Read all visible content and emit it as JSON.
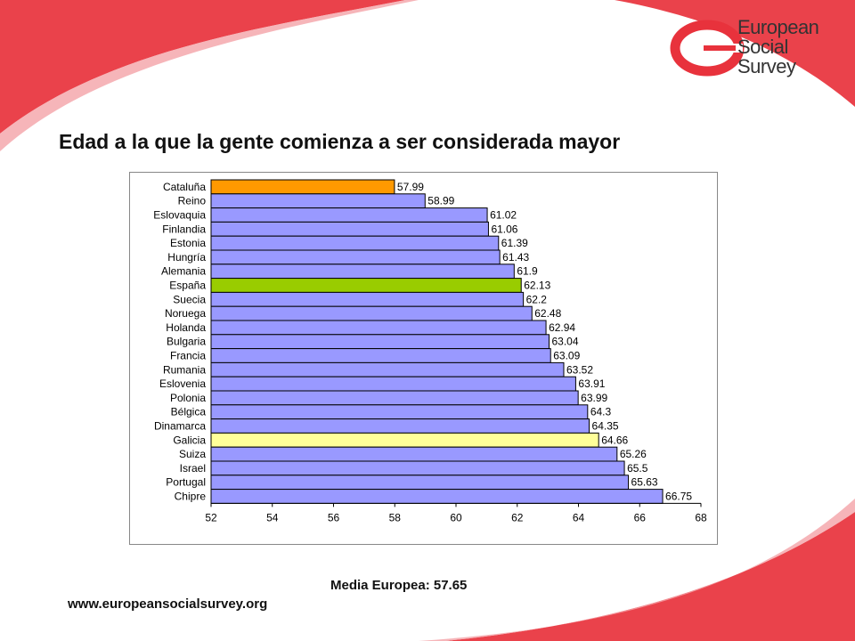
{
  "logo": {
    "line1": "European",
    "line2": "Social",
    "line3": "Survey"
  },
  "footer": {
    "average_label": "Media Europea: 57.65",
    "website": "www.europeansocialsurvey.org"
  },
  "colors": {
    "default_bar": "#9999ff",
    "cataluna_bar": "#ff9900",
    "espana_bar": "#99cc00",
    "galicia_bar": "#ffff99",
    "brand_red": "#e8323c"
  },
  "chart_data": {
    "type": "bar",
    "orientation": "horizontal",
    "title": "Edad a la que la gente comienza a ser considerada mayor",
    "xlabel": "",
    "ylabel": "",
    "xlim": [
      52,
      68
    ],
    "xticks": [
      52,
      54,
      56,
      58,
      60,
      62,
      64,
      66,
      68
    ],
    "grid": false,
    "legend": "none",
    "categories": [
      "Cataluña",
      "Reino",
      "Eslovaquia",
      "Finlandia",
      "Estonia",
      "Hungría",
      "Alemania",
      "España",
      "Suecia",
      "Noruega",
      "Holanda",
      "Bulgaria",
      "Francia",
      "Rumania",
      "Eslovenia",
      "Polonia",
      "Bélgica",
      "Dinamarca",
      "Galicia",
      "Suiza",
      "Israel",
      "Portugal",
      "Chipre"
    ],
    "values": [
      57.99,
      58.99,
      61.02,
      61.06,
      61.39,
      61.43,
      61.9,
      62.13,
      62.2,
      62.48,
      62.94,
      63.04,
      63.09,
      63.52,
      63.91,
      63.99,
      64.3,
      64.35,
      64.66,
      65.26,
      65.5,
      65.63,
      66.75
    ],
    "value_labels": [
      "57.99",
      "58.99",
      "61.02",
      "61.06",
      "61.39",
      "61.43",
      "61.9",
      "62.13",
      "62.2",
      "62.48",
      "62.94",
      "63.04",
      "63.09",
      "63.52",
      "63.91",
      "63.99",
      "64.3",
      "64.35",
      "64.66",
      "65.26",
      "65.5",
      "65.63",
      "66.75"
    ],
    "highlights": {
      "Cataluña": "#ff9900",
      "España": "#99cc00",
      "Galicia": "#ffff99"
    }
  }
}
